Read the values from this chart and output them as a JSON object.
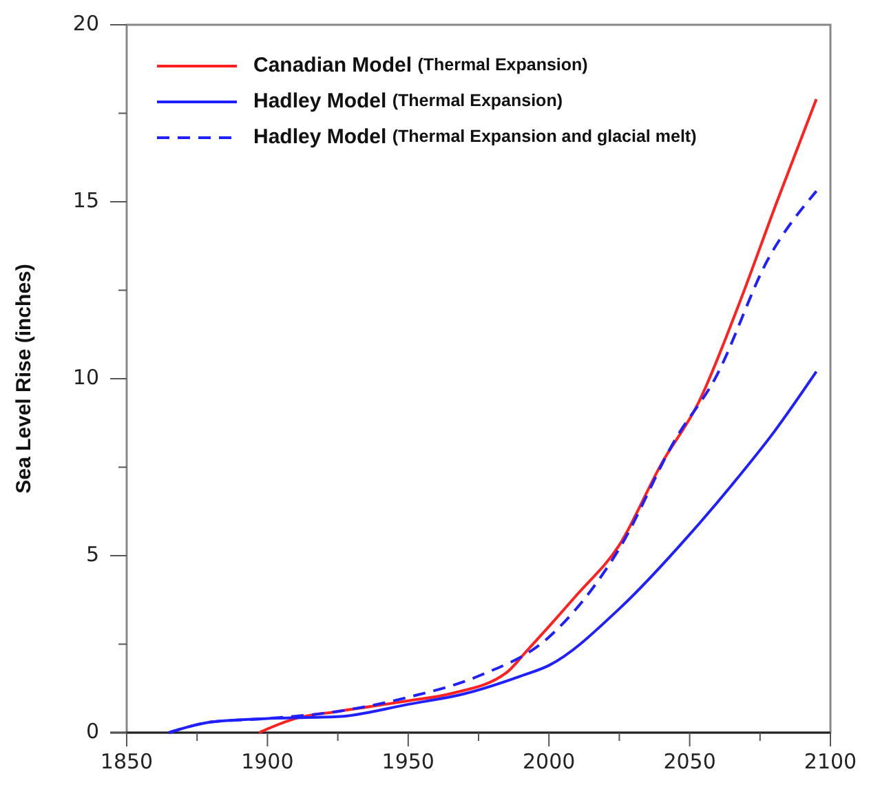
{
  "chart_data": {
    "type": "line",
    "ylabel": "Sea Level Rise (inches)",
    "xlim": [
      1850,
      2100
    ],
    "ylim": [
      0,
      20
    ],
    "xticks": [
      1850,
      {
        "value": 1875,
        "label": null
      },
      1900,
      {
        "value": 1925,
        "label": null
      },
      1950,
      {
        "value": 1975,
        "label": null
      },
      2000,
      {
        "value": 2025,
        "label": null
      },
      2050,
      {
        "value": 2075,
        "label": null
      },
      2100
    ],
    "yticks": [
      0,
      {
        "value": 2.5,
        "label": null
      },
      5,
      {
        "value": 7.5,
        "label": null
      },
      10,
      {
        "value": 12.5,
        "label": null
      },
      15,
      {
        "value": 17.5,
        "label": null
      },
      20
    ],
    "grid": false,
    "legend": "top left",
    "series": [
      {
        "name": "Canadian Model (Thermal Expansion)",
        "color": "#ff2020",
        "line_style": "solid",
        "x": [
          1897,
          1910,
          1925,
          1950,
          1965,
          1985,
          1992,
          2000,
          2010,
          2025,
          2040,
          2053,
          2067,
          2081,
          2095
        ],
        "values": [
          0,
          0.4,
          0.6,
          0.9,
          1.1,
          1.7,
          2.3,
          3.0,
          3.9,
          5.3,
          7.6,
          9.3,
          12,
          15,
          17.9
        ]
      },
      {
        "name": "Hadley Model (Thermal Expansion)",
        "color": "#2020ff",
        "line_style": "solid",
        "x": [
          1865,
          1880,
          1900,
          1925,
          1950,
          1970,
          1990,
          2000,
          2025,
          2050,
          2065,
          2080,
          2095
        ],
        "values": [
          0,
          0.3,
          0.4,
          0.45,
          0.8,
          1.1,
          1.6,
          1.9,
          3.5,
          5.6,
          7,
          8.5,
          10.2
        ]
      },
      {
        "name": "Hadley Model (Thermal Expansion and glacial melt)",
        "color": "#2020ff",
        "line_style": "dashed",
        "x": [
          1865,
          1880,
          1900,
          1925,
          1950,
          1975,
          2000,
          2025,
          2045,
          2059,
          2078,
          2095
        ],
        "values": [
          0,
          0.3,
          0.4,
          0.6,
          1.0,
          1.6,
          2.7,
          5.2,
          8.3,
          10,
          13.4,
          15.3
        ]
      }
    ]
  }
}
